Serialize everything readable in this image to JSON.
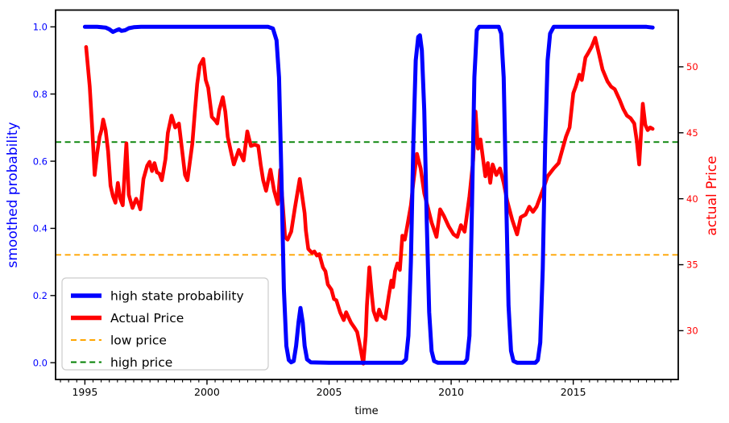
{
  "figure": {
    "background": "#ffffff",
    "frame_color": "#000000"
  },
  "chart_data": {
    "type": "line",
    "title": "",
    "x_axis": {
      "label": "time",
      "range": [
        1993.8,
        2019.3
      ],
      "major_ticks": [
        1995,
        2000,
        2005,
        2010,
        2015
      ],
      "minor_tick_step": 0.3333,
      "tick_label_color": "#000000"
    },
    "left_axis": {
      "label": "smoothed probability",
      "range": [
        -0.05,
        1.05
      ],
      "ticks": [
        0.0,
        0.2,
        0.4,
        0.6,
        0.8,
        1.0
      ],
      "color": "#0000ff"
    },
    "right_axis": {
      "label": "actual Price",
      "range": [
        26.3,
        54.3
      ],
      "ticks": [
        30,
        35,
        40,
        45,
        50
      ],
      "color": "#ff0000"
    },
    "hlines": [
      {
        "name": "low price",
        "axis": "right",
        "value": 35.75,
        "color": "#ffa500",
        "style": "dashed",
        "width": 1.8
      },
      {
        "name": "high price",
        "axis": "right",
        "value": 44.3,
        "color": "#008000",
        "style": "dashed",
        "width": 1.8
      }
    ],
    "series": [
      {
        "name": "Actual Price",
        "axis": "right",
        "color": "#ff0000",
        "width": 4.6,
        "style": "solid",
        "points": [
          [
            1995.05,
            51.5
          ],
          [
            1995.2,
            48.5
          ],
          [
            1995.3,
            45.3
          ],
          [
            1995.4,
            41.8
          ],
          [
            1995.5,
            43.4
          ],
          [
            1995.6,
            44.7
          ],
          [
            1995.68,
            45.2
          ],
          [
            1995.75,
            46.0
          ],
          [
            1995.85,
            45.2
          ],
          [
            1995.95,
            43.6
          ],
          [
            1996.05,
            41.0
          ],
          [
            1996.15,
            40.2
          ],
          [
            1996.25,
            39.7
          ],
          [
            1996.35,
            41.2
          ],
          [
            1996.45,
            40.0
          ],
          [
            1996.55,
            39.5
          ],
          [
            1996.7,
            44.2
          ],
          [
            1996.8,
            40.3
          ],
          [
            1996.95,
            39.3
          ],
          [
            1997.1,
            40.0
          ],
          [
            1997.2,
            39.6
          ],
          [
            1997.27,
            39.2
          ],
          [
            1997.4,
            41.5
          ],
          [
            1997.55,
            42.5
          ],
          [
            1997.65,
            42.8
          ],
          [
            1997.75,
            42.1
          ],
          [
            1997.85,
            42.7
          ],
          [
            1997.95,
            42.0
          ],
          [
            1998.05,
            41.9
          ],
          [
            1998.15,
            41.4
          ],
          [
            1998.3,
            43.0
          ],
          [
            1998.4,
            45.0
          ],
          [
            1998.55,
            46.3
          ],
          [
            1998.7,
            45.4
          ],
          [
            1998.85,
            45.7
          ],
          [
            1999.0,
            43.4
          ],
          [
            1999.1,
            41.8
          ],
          [
            1999.2,
            41.4
          ],
          [
            1999.4,
            44.2
          ],
          [
            1999.5,
            46.5
          ],
          [
            1999.6,
            48.7
          ],
          [
            1999.7,
            50.1
          ],
          [
            1999.85,
            50.6
          ],
          [
            1999.95,
            49.0
          ],
          [
            2000.05,
            48.4
          ],
          [
            2000.2,
            46.2
          ],
          [
            2000.35,
            45.9
          ],
          [
            2000.42,
            45.7
          ],
          [
            2000.5,
            46.7
          ],
          [
            2000.65,
            47.7
          ],
          [
            2000.75,
            46.6
          ],
          [
            2000.85,
            44.7
          ],
          [
            2001.0,
            43.4
          ],
          [
            2001.1,
            42.6
          ],
          [
            2001.3,
            43.7
          ],
          [
            2001.5,
            42.9
          ],
          [
            2001.65,
            45.1
          ],
          [
            2001.8,
            44.0
          ],
          [
            2001.95,
            44.1
          ],
          [
            2002.1,
            44.0
          ],
          [
            2002.2,
            42.6
          ],
          [
            2002.3,
            41.4
          ],
          [
            2002.42,
            40.6
          ],
          [
            2002.6,
            42.2
          ],
          [
            2002.75,
            40.6
          ],
          [
            2002.9,
            39.6
          ],
          [
            2003.0,
            42.2
          ],
          [
            2003.2,
            37.1
          ],
          [
            2003.3,
            36.9
          ],
          [
            2003.45,
            37.5
          ],
          [
            2003.6,
            39.3
          ],
          [
            2003.8,
            41.5
          ],
          [
            2004.0,
            38.9
          ],
          [
            2004.05,
            37.6
          ],
          [
            2004.15,
            36.2
          ],
          [
            2004.3,
            35.9
          ],
          [
            2004.4,
            36.0
          ],
          [
            2004.5,
            35.7
          ],
          [
            2004.6,
            35.8
          ],
          [
            2004.75,
            34.8
          ],
          [
            2004.85,
            34.5
          ],
          [
            2004.95,
            33.5
          ],
          [
            2005.1,
            33.1
          ],
          [
            2005.2,
            32.4
          ],
          [
            2005.3,
            32.3
          ],
          [
            2005.45,
            31.4
          ],
          [
            2005.6,
            30.8
          ],
          [
            2005.7,
            31.4
          ],
          [
            2005.9,
            30.6
          ],
          [
            2006.05,
            30.2
          ],
          [
            2006.15,
            29.9
          ],
          [
            2006.25,
            29.0
          ],
          [
            2006.4,
            27.5
          ],
          [
            2006.5,
            29.6
          ],
          [
            2006.55,
            31.9
          ],
          [
            2006.65,
            34.8
          ],
          [
            2006.75,
            32.7
          ],
          [
            2006.82,
            31.5
          ],
          [
            2006.95,
            30.8
          ],
          [
            2007.05,
            31.6
          ],
          [
            2007.15,
            31.1
          ],
          [
            2007.3,
            30.9
          ],
          [
            2007.45,
            32.7
          ],
          [
            2007.55,
            33.8
          ],
          [
            2007.62,
            33.3
          ],
          [
            2007.7,
            34.5
          ],
          [
            2007.8,
            35.1
          ],
          [
            2007.9,
            34.6
          ],
          [
            2008.0,
            37.2
          ],
          [
            2008.1,
            36.9
          ],
          [
            2008.2,
            37.9
          ],
          [
            2008.35,
            39.5
          ],
          [
            2008.45,
            41.2
          ],
          [
            2008.6,
            43.4
          ],
          [
            2008.75,
            42.3
          ],
          [
            2008.9,
            40.4
          ],
          [
            2009.05,
            39.3
          ],
          [
            2009.2,
            38.2
          ],
          [
            2009.4,
            37.1
          ],
          [
            2009.55,
            39.2
          ],
          [
            2009.7,
            38.7
          ],
          [
            2009.9,
            37.9
          ],
          [
            2010.1,
            37.3
          ],
          [
            2010.25,
            37.1
          ],
          [
            2010.4,
            38.0
          ],
          [
            2010.55,
            37.5
          ],
          [
            2010.75,
            40.2
          ],
          [
            2010.9,
            42.9
          ],
          [
            2011.0,
            46.6
          ],
          [
            2011.1,
            43.8
          ],
          [
            2011.2,
            44.5
          ],
          [
            2011.3,
            43.1
          ],
          [
            2011.4,
            41.7
          ],
          [
            2011.5,
            42.7
          ],
          [
            2011.6,
            41.2
          ],
          [
            2011.7,
            42.6
          ],
          [
            2011.85,
            41.8
          ],
          [
            2012.0,
            42.3
          ],
          [
            2012.15,
            41.2
          ],
          [
            2012.3,
            39.8
          ],
          [
            2012.5,
            38.4
          ],
          [
            2012.7,
            37.3
          ],
          [
            2012.85,
            38.6
          ],
          [
            2013.05,
            38.8
          ],
          [
            2013.2,
            39.4
          ],
          [
            2013.35,
            39.0
          ],
          [
            2013.5,
            39.4
          ],
          [
            2013.8,
            40.9
          ],
          [
            2013.95,
            41.7
          ],
          [
            2014.2,
            42.3
          ],
          [
            2014.4,
            42.7
          ],
          [
            2014.55,
            43.7
          ],
          [
            2014.7,
            44.7
          ],
          [
            2014.85,
            45.4
          ],
          [
            2015.0,
            48.0
          ],
          [
            2015.1,
            48.5
          ],
          [
            2015.25,
            49.4
          ],
          [
            2015.35,
            49.0
          ],
          [
            2015.5,
            50.7
          ],
          [
            2015.6,
            51.0
          ],
          [
            2015.75,
            51.5
          ],
          [
            2015.9,
            52.2
          ],
          [
            2016.05,
            51.0
          ],
          [
            2016.2,
            49.8
          ],
          [
            2016.4,
            48.9
          ],
          [
            2016.55,
            48.5
          ],
          [
            2016.7,
            48.3
          ],
          [
            2016.9,
            47.5
          ],
          [
            2017.05,
            46.8
          ],
          [
            2017.2,
            46.3
          ],
          [
            2017.35,
            46.1
          ],
          [
            2017.5,
            45.7
          ],
          [
            2017.6,
            44.4
          ],
          [
            2017.7,
            42.6
          ],
          [
            2017.85,
            47.2
          ],
          [
            2017.95,
            45.6
          ],
          [
            2018.05,
            45.2
          ],
          [
            2018.15,
            45.4
          ],
          [
            2018.25,
            45.3
          ]
        ]
      },
      {
        "name": "high state probability",
        "axis": "left",
        "color": "#0000ff",
        "width": 5,
        "style": "solid",
        "points": [
          [
            1995.0,
            1.0
          ],
          [
            1995.5,
            1.0
          ],
          [
            1995.85,
            0.998
          ],
          [
            1996.0,
            0.993
          ],
          [
            1996.15,
            0.985
          ],
          [
            1996.3,
            0.99
          ],
          [
            1996.4,
            0.993
          ],
          [
            1996.5,
            0.988
          ],
          [
            1996.65,
            0.99
          ],
          [
            1996.8,
            0.996
          ],
          [
            1997.0,
            0.999
          ],
          [
            1997.3,
            1.0
          ],
          [
            1999.0,
            1.0
          ],
          [
            2001.0,
            1.0
          ],
          [
            2002.5,
            1.0
          ],
          [
            2002.7,
            0.995
          ],
          [
            2002.85,
            0.96
          ],
          [
            2002.95,
            0.85
          ],
          [
            2003.05,
            0.55
          ],
          [
            2003.15,
            0.22
          ],
          [
            2003.25,
            0.05
          ],
          [
            2003.35,
            0.008
          ],
          [
            2003.45,
            0.001
          ],
          [
            2003.55,
            0.005
          ],
          [
            2003.65,
            0.05
          ],
          [
            2003.75,
            0.12
          ],
          [
            2003.83,
            0.163
          ],
          [
            2003.92,
            0.12
          ],
          [
            2004.0,
            0.05
          ],
          [
            2004.1,
            0.01
          ],
          [
            2004.25,
            0.001
          ],
          [
            2005.0,
            0.0
          ],
          [
            2006.5,
            0.0
          ],
          [
            2008.0,
            0.0
          ],
          [
            2008.15,
            0.01
          ],
          [
            2008.25,
            0.08
          ],
          [
            2008.35,
            0.3
          ],
          [
            2008.45,
            0.65
          ],
          [
            2008.55,
            0.9
          ],
          [
            2008.65,
            0.97
          ],
          [
            2008.72,
            0.975
          ],
          [
            2008.8,
            0.93
          ],
          [
            2008.9,
            0.75
          ],
          [
            2009.0,
            0.42
          ],
          [
            2009.1,
            0.15
          ],
          [
            2009.2,
            0.035
          ],
          [
            2009.3,
            0.005
          ],
          [
            2009.45,
            0.0
          ],
          [
            2010.0,
            0.0
          ],
          [
            2010.55,
            0.0
          ],
          [
            2010.65,
            0.01
          ],
          [
            2010.75,
            0.08
          ],
          [
            2010.85,
            0.45
          ],
          [
            2010.95,
            0.85
          ],
          [
            2011.05,
            0.99
          ],
          [
            2011.15,
            1.0
          ],
          [
            2011.6,
            1.0
          ],
          [
            2011.95,
            1.0
          ],
          [
            2012.05,
            0.98
          ],
          [
            2012.15,
            0.85
          ],
          [
            2012.25,
            0.5
          ],
          [
            2012.35,
            0.17
          ],
          [
            2012.45,
            0.035
          ],
          [
            2012.55,
            0.005
          ],
          [
            2012.7,
            0.0
          ],
          [
            2013.0,
            0.0
          ],
          [
            2013.45,
            0.0
          ],
          [
            2013.55,
            0.008
          ],
          [
            2013.65,
            0.06
          ],
          [
            2013.75,
            0.28
          ],
          [
            2013.85,
            0.65
          ],
          [
            2013.95,
            0.9
          ],
          [
            2014.05,
            0.98
          ],
          [
            2014.2,
            1.0
          ],
          [
            2015.0,
            1.0
          ],
          [
            2016.0,
            1.0
          ],
          [
            2017.0,
            1.0
          ],
          [
            2018.0,
            1.0
          ],
          [
            2018.25,
            0.998
          ]
        ]
      }
    ],
    "legend": {
      "position": "lower left",
      "items": [
        {
          "label": "high state probability",
          "color": "#0000ff",
          "style": "solid",
          "width": 5.5
        },
        {
          "label": "Actual Price",
          "color": "#ff0000",
          "style": "solid",
          "width": 5.5
        },
        {
          "label": "low price",
          "color": "#ffa500",
          "style": "dashed",
          "width": 2
        },
        {
          "label": "high price",
          "color": "#008000",
          "style": "dashed",
          "width": 2
        }
      ]
    }
  }
}
